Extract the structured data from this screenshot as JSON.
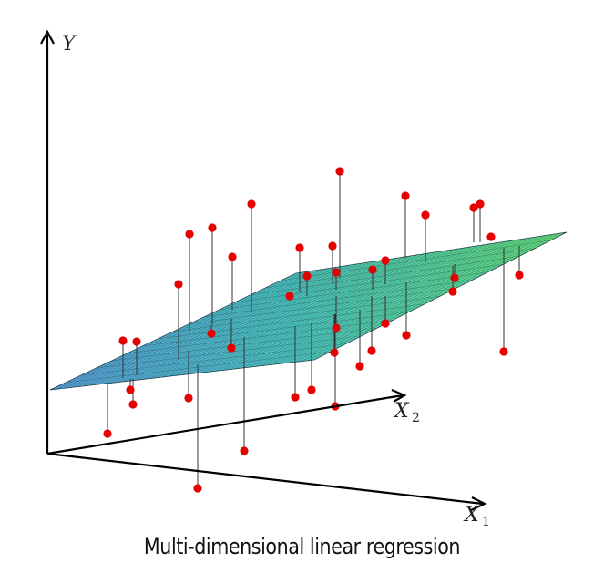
{
  "caption": "Multi-dimensional linear regression",
  "axes": {
    "y_label": "Y",
    "x1_label": "X",
    "x1_subscript": "1",
    "x2_label": "X",
    "x2_subscript": "2"
  },
  "colors": {
    "axis": "#000000",
    "point": "#e60000",
    "residual": "#333333",
    "plane_left": "#5a9fe0",
    "plane_right": "#62e27e",
    "mesh": "#1c3a3a"
  }
}
